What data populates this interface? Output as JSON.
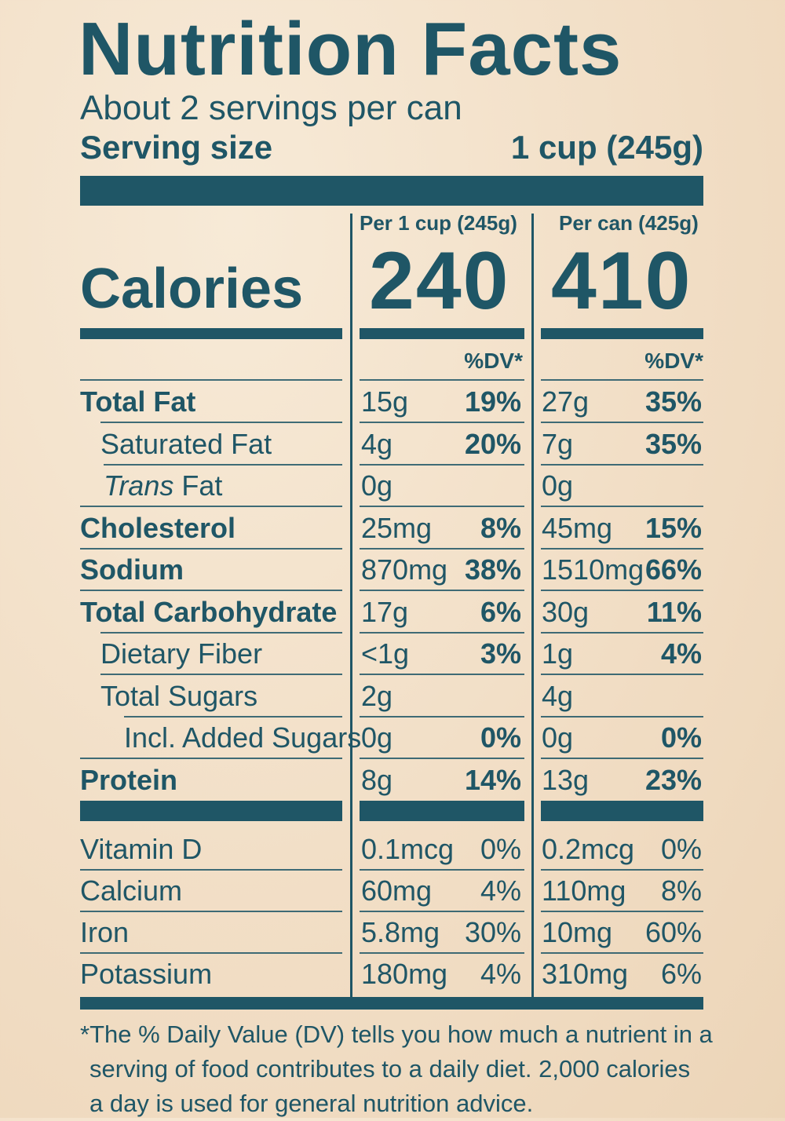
{
  "title": "Nutrition Facts",
  "servings_per_container": "About 2 servings per can",
  "serving_size_label": "Serving size",
  "serving_size_value": "1 cup (245g)",
  "columns": {
    "per_serving_header": "Per 1 cup (245g)",
    "per_container_header": "Per can (425g)",
    "dv_header": "%DV*"
  },
  "calories": {
    "label": "Calories",
    "per_serving": "240",
    "per_container": "410"
  },
  "nutrients": [
    {
      "label": "Total Fat",
      "bold": true,
      "amount1": "15g",
      "dv1": "19%",
      "amount2": "27g",
      "dv2": "35%"
    },
    {
      "label": "Saturated Fat",
      "bold": false,
      "amount1": "4g",
      "dv1": "20%",
      "amount2": "7g",
      "dv2": "35%"
    },
    {
      "label_italic": "Trans",
      "label": "Fat",
      "bold": false,
      "amount1": "0g",
      "dv1": "",
      "amount2": "0g",
      "dv2": ""
    },
    {
      "label": "Cholesterol",
      "bold": true,
      "amount1": "25mg",
      "dv1": "8%",
      "amount2": "45mg",
      "dv2": "15%"
    },
    {
      "label": "Sodium",
      "bold": true,
      "amount1": "870mg",
      "dv1": "38%",
      "amount2": "1510mg",
      "dv2": "66%"
    },
    {
      "label": "Total Carbohydrate",
      "bold": true,
      "amount1": "17g",
      "dv1": "6%",
      "amount2": "30g",
      "dv2": "11%"
    },
    {
      "label": "Dietary Fiber",
      "bold": false,
      "amount1": "<1g",
      "dv1": "3%",
      "amount2": "1g",
      "dv2": "4%"
    },
    {
      "label": "Total Sugars",
      "bold": false,
      "amount1": "2g",
      "dv1": "",
      "amount2": "4g",
      "dv2": ""
    },
    {
      "label": "Incl. Added Sugars",
      "bold": false,
      "amount1": "0g",
      "dv1": "0%",
      "amount2": "0g",
      "dv2": "0%"
    },
    {
      "label": "Protein",
      "bold": true,
      "amount1": "8g",
      "dv1": "14%",
      "amount2": "13g",
      "dv2": "23%"
    }
  ],
  "micronutrients": [
    {
      "label": "Vitamin D",
      "amount1": "0.1mcg",
      "dv1": "0%",
      "amount2": "0.2mcg",
      "dv2": "0%"
    },
    {
      "label": "Calcium",
      "amount1": "60mg",
      "dv1": "4%",
      "amount2": "110mg",
      "dv2": "8%"
    },
    {
      "label": "Iron",
      "amount1": "5.8mg",
      "dv1": "30%",
      "amount2": "10mg",
      "dv2": "60%"
    },
    {
      "label": "Potassium",
      "amount1": "180mg",
      "dv1": "4%",
      "amount2": "310mg",
      "dv2": "6%"
    }
  ],
  "footnote": [
    "*The % Daily Value (DV) tells you how much a nutrient in a",
    "serving of food contributes to a daily diet. 2,000 calories",
    "a day is used for general nutrition advice."
  ],
  "colors": {
    "ink": "#1f5666",
    "background": "#f3e3cd"
  }
}
